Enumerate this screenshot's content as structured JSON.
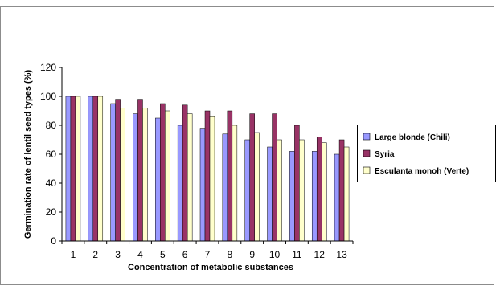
{
  "chart_data": {
    "type": "bar",
    "xlabel": "Concentration of metabolic substances",
    "ylabel": "Germination rate of lentil seed types (%)",
    "categories": [
      "1",
      "2",
      "3",
      "4",
      "5",
      "6",
      "7",
      "8",
      "9",
      "10",
      "11",
      "12",
      "13"
    ],
    "ylim": [
      0,
      120
    ],
    "yticks": [
      "0",
      "20",
      "40",
      "60",
      "80",
      "100",
      "120"
    ],
    "grid": false,
    "legend_position": "right",
    "series": [
      {
        "name": "Large blonde (Chili)",
        "color": "#9999ff",
        "values": [
          100,
          100,
          95,
          88,
          85,
          80,
          78,
          74,
          70,
          65,
          62,
          62,
          60
        ]
      },
      {
        "name": "Syria",
        "color": "#993366",
        "values": [
          100,
          100,
          98,
          98,
          95,
          94,
          90,
          90,
          88,
          88,
          80,
          72,
          70
        ]
      },
      {
        "name": "Esculanta monoh (Verte)",
        "color": "#ffffcc",
        "values": [
          100,
          100,
          92,
          92,
          90,
          88,
          86,
          80,
          75,
          70,
          70,
          68,
          65
        ]
      }
    ]
  }
}
